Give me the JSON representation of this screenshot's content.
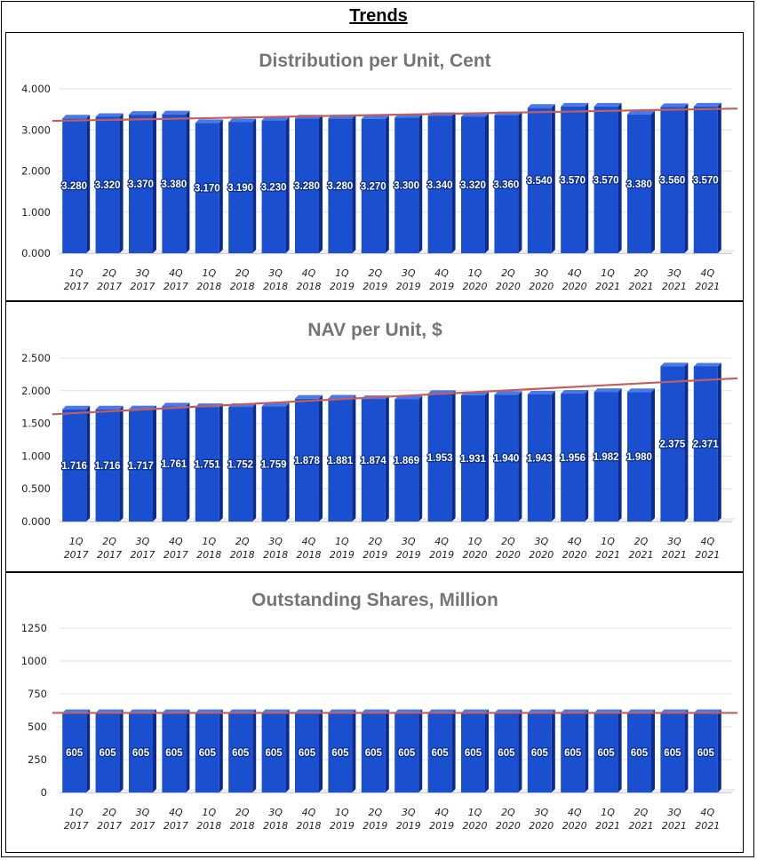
{
  "page": {
    "title": "Trends"
  },
  "colors": {
    "bar_front": "#1a4fcf",
    "bar_side": "#0a2b8f",
    "bar_top": "#4a78e8",
    "trend": "#c0605e",
    "grid": "#e0e0e0"
  },
  "chart_data": [
    {
      "type": "bar",
      "title": "Distribution per Unit, Cent",
      "categories": [
        "1Q 2017",
        "2Q 2017",
        "3Q 2017",
        "4Q 2017",
        "1Q 2018",
        "2Q 2018",
        "3Q 2018",
        "4Q 2018",
        "1Q 2019",
        "2Q 2019",
        "3Q 2019",
        "4Q 2019",
        "1Q 2020",
        "2Q 2020",
        "3Q 2020",
        "4Q 2020",
        "1Q 2021",
        "2Q 2021",
        "3Q 2021",
        "4Q 2021"
      ],
      "values": [
        3.28,
        3.32,
        3.37,
        3.38,
        3.17,
        3.19,
        3.23,
        3.28,
        3.28,
        3.27,
        3.3,
        3.34,
        3.32,
        3.36,
        3.54,
        3.57,
        3.57,
        3.38,
        3.56,
        3.57
      ],
      "data_labels": [
        "3.280",
        "3.320",
        "3.370",
        "3.380",
        "3.170",
        "3.190",
        "3.230",
        "3.280",
        "3.280",
        "3.270",
        "3.300",
        "3.340",
        "3.320",
        "3.360",
        "3.540",
        "3.570",
        "3.570",
        "3.380",
        "3.560",
        "3.570"
      ],
      "ylim": [
        0,
        4
      ],
      "yticks": [
        {
          "value": 0,
          "label": "0.000"
        },
        {
          "value": 1,
          "label": "1.000"
        },
        {
          "value": 2,
          "label": "2.000"
        },
        {
          "value": 3,
          "label": "3.000"
        },
        {
          "value": 4,
          "label": "4.000"
        }
      ],
      "trendline": [
        3.22,
        3.52
      ],
      "xlabel": "",
      "ylabel": ""
    },
    {
      "type": "bar",
      "title": "NAV per Unit, $",
      "categories": [
        "1Q 2017",
        "2Q 2017",
        "3Q 2017",
        "4Q 2017",
        "1Q 2018",
        "2Q 2018",
        "3Q 2018",
        "4Q 2018",
        "1Q 2019",
        "2Q 2019",
        "3Q 2019",
        "4Q 2019",
        "1Q 2020",
        "2Q 2020",
        "3Q 2020",
        "4Q 2020",
        "1Q 2021",
        "2Q 2021",
        "3Q 2021",
        "4Q 2021"
      ],
      "values": [
        1.716,
        1.716,
        1.717,
        1.761,
        1.751,
        1.752,
        1.759,
        1.878,
        1.881,
        1.874,
        1.869,
        1.953,
        1.931,
        1.94,
        1.943,
        1.956,
        1.982,
        1.98,
        2.375,
        2.371
      ],
      "data_labels": [
        "1.716",
        "1.716",
        "1.717",
        "1.761",
        "1.751",
        "1.752",
        "1.759",
        "1.878",
        "1.881",
        "1.874",
        "1.869",
        "1.953",
        "1.931",
        "1.940",
        "1.943",
        "1.956",
        "1.982",
        "1.980",
        "2.375",
        "2.371"
      ],
      "ylim": [
        0,
        2.5
      ],
      "yticks": [
        {
          "value": 0,
          "label": "0.000"
        },
        {
          "value": 0.5,
          "label": "0.500"
        },
        {
          "value": 1,
          "label": "1.000"
        },
        {
          "value": 1.5,
          "label": "1.500"
        },
        {
          "value": 2,
          "label": "2.000"
        },
        {
          "value": 2.5,
          "label": "2.500"
        }
      ],
      "trendline": [
        1.64,
        2.19
      ],
      "xlabel": "",
      "ylabel": ""
    },
    {
      "type": "bar",
      "title": "Outstanding Shares, Million",
      "categories": [
        "1Q 2017",
        "2Q 2017",
        "3Q 2017",
        "4Q 2017",
        "1Q 2018",
        "2Q 2018",
        "3Q 2018",
        "4Q 2018",
        "1Q 2019",
        "2Q 2019",
        "3Q 2019",
        "4Q 2019",
        "1Q 2020",
        "2Q 2020",
        "3Q 2020",
        "4Q 2020",
        "1Q 2021",
        "2Q 2021",
        "3Q 2021",
        "4Q 2021"
      ],
      "values": [
        605,
        605,
        605,
        605,
        605,
        605,
        605,
        605,
        605,
        605,
        605,
        605,
        605,
        605,
        605,
        605,
        605,
        605,
        605,
        605
      ],
      "data_labels": [
        "605",
        "605",
        "605",
        "605",
        "605",
        "605",
        "605",
        "605",
        "605",
        "605",
        "605",
        "605",
        "605",
        "605",
        "605",
        "605",
        "605",
        "605",
        "605",
        "605"
      ],
      "ylim": [
        0,
        1250
      ],
      "yticks": [
        {
          "value": 0,
          "label": "0"
        },
        {
          "value": 250,
          "label": "250"
        },
        {
          "value": 500,
          "label": "500"
        },
        {
          "value": 750,
          "label": "750"
        },
        {
          "value": 1000,
          "label": "1000"
        },
        {
          "value": 1250,
          "label": "1250"
        }
      ],
      "trendline": [
        605,
        605
      ],
      "xlabel": "",
      "ylabel": ""
    }
  ]
}
